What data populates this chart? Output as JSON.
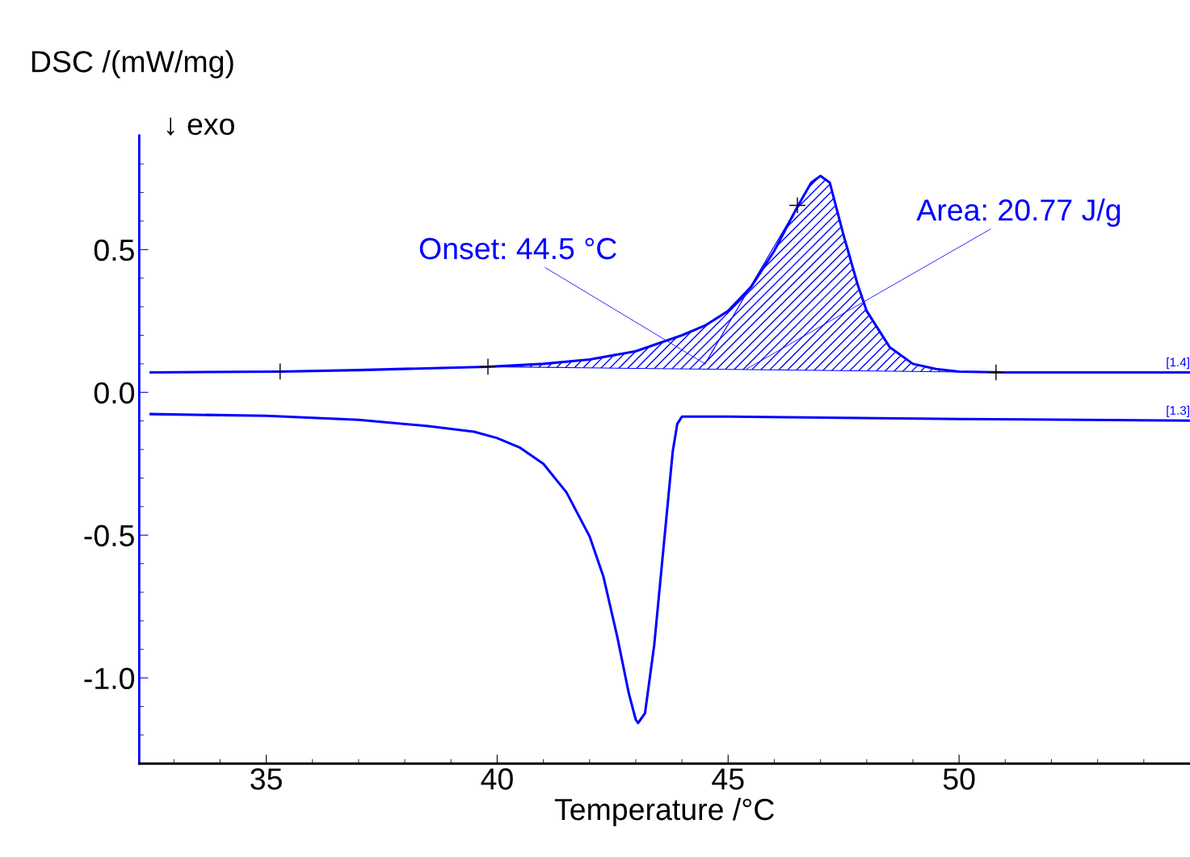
{
  "chart_data": {
    "type": "line",
    "xlabel": "Temperature /°C",
    "ylabel": "DSC /(mW/mg)",
    "xlim": [
      32.25,
      55
    ],
    "ylim": [
      -1.3,
      0.9
    ],
    "xticks": [
      {
        "value": 33,
        "label": null
      },
      {
        "value": 34,
        "label": null
      },
      35,
      {
        "value": 36,
        "label": null
      },
      {
        "value": 37,
        "label": null
      },
      {
        "value": 38,
        "label": null
      },
      {
        "value": 39,
        "label": null
      },
      40,
      {
        "value": 41,
        "label": null
      },
      {
        "value": 42,
        "label": null
      },
      {
        "value": 43,
        "label": null
      },
      {
        "value": 44,
        "label": null
      },
      45,
      {
        "value": 46,
        "label": null
      },
      {
        "value": 47,
        "label": null
      },
      {
        "value": 48,
        "label": null
      },
      {
        "value": 49,
        "label": null
      },
      50,
      {
        "value": 51,
        "label": null
      },
      {
        "value": 52,
        "label": null
      },
      {
        "value": 53,
        "label": null
      },
      {
        "value": 54,
        "label": null
      }
    ],
    "yticks": [
      {
        "value": -1.2,
        "label": null
      },
      {
        "value": -1.1,
        "label": null
      },
      {
        "value": -1.0,
        "label": "-1.0"
      },
      {
        "value": -0.9,
        "label": null
      },
      {
        "value": -0.8,
        "label": null
      },
      {
        "value": -0.7,
        "label": null
      },
      {
        "value": -0.6,
        "label": null
      },
      -0.5,
      {
        "value": -0.4,
        "label": null
      },
      {
        "value": -0.3,
        "label": null
      },
      {
        "value": -0.2,
        "label": null
      },
      {
        "value": -0.1,
        "label": null
      },
      {
        "value": 0,
        "label": "0.0"
      },
      {
        "value": 0.1,
        "label": null
      },
      {
        "value": 0.2,
        "label": null
      },
      {
        "value": 0.3,
        "label": null
      },
      {
        "value": 0.4,
        "label": null
      },
      0.5,
      {
        "value": 0.6,
        "label": null
      },
      {
        "value": 0.7,
        "label": null
      },
      {
        "value": 0.8,
        "label": null
      }
    ],
    "grid": false,
    "legend": false,
    "series": [
      {
        "name": "[1.4]",
        "color": "#0000ff",
        "x": [
          32.5,
          35.3,
          37,
          39.8,
          41,
          42,
          43,
          44,
          44.5,
          45,
          45.5,
          46,
          46.5,
          46.8,
          47,
          47.2,
          47.5,
          47.8,
          48,
          48.5,
          49,
          49.5,
          50,
          51,
          55
        ],
        "values": [
          0.07,
          0.073,
          0.078,
          0.09,
          0.1,
          0.115,
          0.144,
          0.2,
          0.234,
          0.285,
          0.37,
          0.496,
          0.65,
          0.735,
          0.758,
          0.735,
          0.55,
          0.38,
          0.285,
          0.158,
          0.1,
          0.082,
          0.073,
          0.07,
          0.07
        ]
      },
      {
        "name": "[1.3]",
        "color": "#0000ff",
        "x": [
          32.5,
          35,
          37,
          38.5,
          39.5,
          40,
          40.5,
          41,
          41.5,
          42,
          42.3,
          42.6,
          42.85,
          43.0,
          43.05,
          43.2,
          43.4,
          43.6,
          43.8,
          43.9,
          44,
          45,
          50,
          55
        ],
        "values": [
          -0.076,
          -0.082,
          -0.096,
          -0.118,
          -0.138,
          -0.16,
          -0.194,
          -0.25,
          -0.35,
          -0.504,
          -0.645,
          -0.856,
          -1.054,
          -1.146,
          -1.158,
          -1.124,
          -0.885,
          -0.546,
          -0.208,
          -0.11,
          -0.085,
          -0.085,
          -0.093,
          -0.099
        ]
      },
      {
        "type": "line",
        "color": "#0000ff",
        "x": [
          39.8,
          50.8
        ],
        "values": [
          0.09,
          0.07
        ]
      },
      {
        "type": "line",
        "color": "#0000ff",
        "x": [
          44.5,
          46.5
        ],
        "values": [
          0.1,
          0.65
        ]
      },
      {
        "type": "scatter",
        "marker": "cross",
        "color": "#000000",
        "x": [
          35.3,
          39.8,
          46.5,
          50.8
        ],
        "values": [
          0.073,
          0.09,
          0.655,
          0.07
        ]
      }
    ],
    "annotations": [
      "↓ exo",
      {
        "text": "Onset: 44.5 °C",
        "x": 44.5,
        "y": 0.1
      },
      {
        "text": "Area: 20.77 J/g",
        "x": 45.4,
        "y": 0.082
      }
    ]
  }
}
